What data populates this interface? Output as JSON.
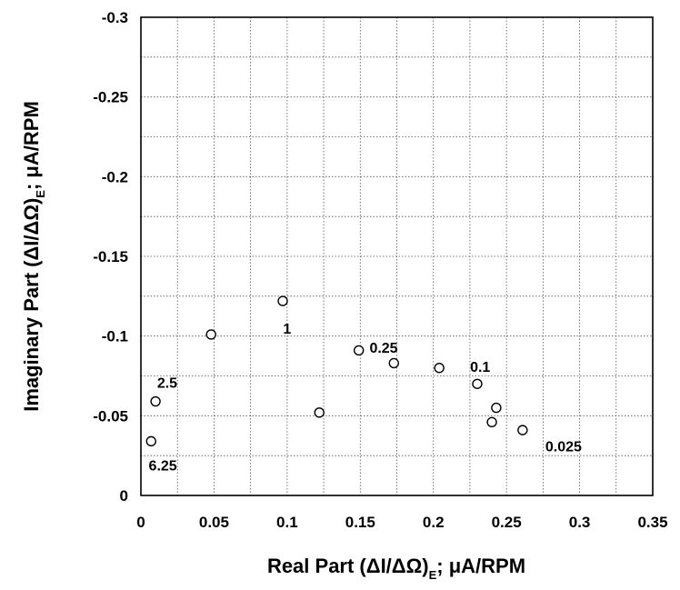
{
  "chart_data": {
    "type": "scatter",
    "xlabel": {
      "main": "Real Part (ΔI/ΔΩ)",
      "sub": "E",
      "tail": "; μA/RPM"
    },
    "ylabel": {
      "main": "Imaginary Part (ΔI/ΔΩ)",
      "sub": "E",
      "tail": "; μA/RPM"
    },
    "xlim": [
      0,
      0.35
    ],
    "ylim": [
      0,
      -0.3
    ],
    "x_ticks": [
      "0",
      "0.05",
      "0.1",
      "0.15",
      "0.2",
      "0.25",
      "0.3",
      "0.35"
    ],
    "y_ticks": [
      "0",
      "-0.05",
      "-0.1",
      "-0.15",
      "-0.2",
      "-0.25",
      "-0.3"
    ],
    "grid": true,
    "points": [
      {
        "x": 0.007,
        "y": -0.034
      },
      {
        "x": 0.01,
        "y": -0.059
      },
      {
        "x": 0.048,
        "y": -0.101
      },
      {
        "x": 0.097,
        "y": -0.122
      },
      {
        "x": 0.122,
        "y": -0.052
      },
      {
        "x": 0.149,
        "y": -0.091
      },
      {
        "x": 0.173,
        "y": -0.083
      },
      {
        "x": 0.204,
        "y": -0.08
      },
      {
        "x": 0.23,
        "y": -0.07
      },
      {
        "x": 0.24,
        "y": -0.046
      },
      {
        "x": 0.243,
        "y": -0.055
      },
      {
        "x": 0.261,
        "y": -0.041
      }
    ],
    "annotations": [
      {
        "text": "6.25",
        "x": 0.015,
        "y": -0.019
      },
      {
        "text": "2.5",
        "x": 0.018,
        "y": -0.071
      },
      {
        "text": "1",
        "x": 0.1,
        "y": -0.105
      },
      {
        "text": "0.25",
        "x": 0.166,
        "y": -0.093
      },
      {
        "text": "0.1",
        "x": 0.232,
        "y": -0.081
      },
      {
        "text": "0.025",
        "x": 0.289,
        "y": -0.031
      }
    ]
  }
}
